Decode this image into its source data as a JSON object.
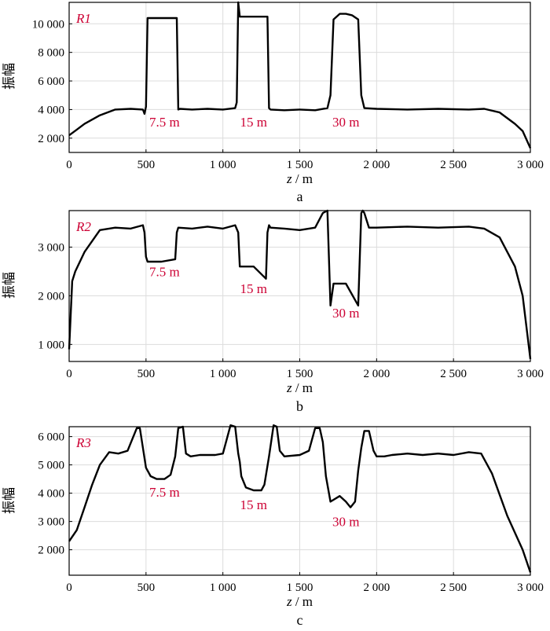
{
  "colors": {
    "line": "#000000",
    "annotation": "#cc0033",
    "grid": "#dcdcdc",
    "frame": "#000000"
  },
  "chart_data": [
    {
      "type": "line",
      "panel_label": "a",
      "series_name": "R1",
      "ylabel": "振幅",
      "xlabel": "z / m",
      "xlim": [
        0,
        3000
      ],
      "ylim": [
        1000,
        11500
      ],
      "xticks": [
        0,
        500,
        1000,
        1500,
        2000,
        2500,
        3000
      ],
      "xtick_labels": [
        "0",
        "500",
        "1 000",
        "1 500",
        "2 000",
        "2 500",
        "3 000"
      ],
      "yticks": [
        2000,
        4000,
        6000,
        8000,
        10000
      ],
      "ytick_labels": [
        "2 000",
        "4 000",
        "6 000",
        "8 000",
        "10 000"
      ],
      "grid": true,
      "annotations": [
        {
          "text": "7.5 m",
          "x": 620,
          "y": 3150
        },
        {
          "text": "15 m",
          "x": 1200,
          "y": 3150
        },
        {
          "text": "30 m",
          "x": 1800,
          "y": 3150
        }
      ],
      "x": [
        0,
        50,
        100,
        200,
        300,
        400,
        480,
        490,
        500,
        510,
        700,
        710,
        720,
        800,
        900,
        1000,
        1080,
        1090,
        1100,
        1110,
        1290,
        1300,
        1310,
        1400,
        1500,
        1600,
        1680,
        1700,
        1720,
        1760,
        1800,
        1840,
        1880,
        1900,
        1920,
        2000,
        2200,
        2400,
        2600,
        2700,
        2800,
        2900,
        2950,
        3000
      ],
      "y": [
        2200,
        2600,
        3000,
        3600,
        4000,
        4050,
        4000,
        3700,
        4200,
        10400,
        10400,
        4000,
        4050,
        4000,
        4050,
        4000,
        4100,
        4500,
        11500,
        10500,
        10500,
        4100,
        4000,
        3950,
        4000,
        3950,
        4100,
        5000,
        10300,
        10700,
        10700,
        10600,
        10300,
        5000,
        4100,
        4050,
        4000,
        4050,
        4000,
        4050,
        3800,
        3000,
        2500,
        1300
      ]
    },
    {
      "type": "line",
      "panel_label": "b",
      "series_name": "R2",
      "ylabel": "振幅",
      "xlabel": "z / m",
      "xlim": [
        0,
        3000
      ],
      "ylim": [
        650,
        3750
      ],
      "xticks": [
        0,
        500,
        1000,
        1500,
        2000,
        2500,
        3000
      ],
      "xtick_labels": [
        "0",
        "500",
        "1 000",
        "1 500",
        "2 000",
        "2 500",
        "3 000"
      ],
      "yticks": [
        1000,
        2000,
        3000
      ],
      "ytick_labels": [
        "1 000",
        "2 000",
        "3 000"
      ],
      "grid": true,
      "annotations": [
        {
          "text": "7.5 m",
          "x": 620,
          "y": 2500
        },
        {
          "text": "15 m",
          "x": 1200,
          "y": 2150
        },
        {
          "text": "30 m",
          "x": 1800,
          "y": 1650
        }
      ],
      "x": [
        0,
        20,
        40,
        100,
        200,
        300,
        400,
        480,
        490,
        500,
        510,
        600,
        690,
        700,
        710,
        800,
        900,
        1000,
        1080,
        1100,
        1110,
        1200,
        1280,
        1290,
        1300,
        1310,
        1400,
        1500,
        1600,
        1650,
        1680,
        1700,
        1720,
        1800,
        1880,
        1900,
        1910,
        1920,
        1950,
        2000,
        2200,
        2400,
        2600,
        2700,
        2800,
        2900,
        2950,
        3000
      ],
      "y": [
        900,
        2300,
        2500,
        2900,
        3350,
        3400,
        3380,
        3450,
        3300,
        2800,
        2700,
        2700,
        2750,
        3300,
        3400,
        3380,
        3420,
        3380,
        3450,
        3300,
        2600,
        2600,
        2350,
        3300,
        3450,
        3400,
        3380,
        3350,
        3400,
        3700,
        3750,
        1800,
        2250,
        2250,
        1800,
        3700,
        3750,
        3700,
        3400,
        3400,
        3420,
        3400,
        3420,
        3380,
        3200,
        2600,
        2000,
        700
      ]
    },
    {
      "type": "line",
      "panel_label": "c",
      "series_name": "R3",
      "ylabel": "振幅",
      "xlabel": "z / m",
      "xlim": [
        0,
        3000
      ],
      "ylim": [
        1100,
        6350
      ],
      "xticks": [
        0,
        500,
        1000,
        1500,
        2000,
        2500,
        3000
      ],
      "xtick_labels": [
        "0",
        "500",
        "1 000",
        "1 500",
        "2 000",
        "2 500",
        "3 000"
      ],
      "yticks": [
        2000,
        3000,
        4000,
        5000,
        6000
      ],
      "ytick_labels": [
        "2 000",
        "3 000",
        "4 000",
        "5 000",
        "6 000"
      ],
      "grid": true,
      "annotations": [
        {
          "text": "7.5 m",
          "x": 620,
          "y": 4050
        },
        {
          "text": "15 m",
          "x": 1200,
          "y": 3600
        },
        {
          "text": "30 m",
          "x": 1800,
          "y": 3000
        }
      ],
      "x": [
        0,
        50,
        100,
        150,
        200,
        260,
        320,
        380,
        440,
        460,
        480,
        500,
        530,
        570,
        620,
        660,
        690,
        710,
        740,
        760,
        790,
        850,
        950,
        1000,
        1050,
        1080,
        1100,
        1110,
        1120,
        1150,
        1200,
        1250,
        1270,
        1300,
        1330,
        1350,
        1370,
        1400,
        1500,
        1560,
        1600,
        1630,
        1650,
        1670,
        1700,
        1760,
        1800,
        1830,
        1860,
        1880,
        1900,
        1920,
        1950,
        1980,
        2000,
        2050,
        2100,
        2200,
        2300,
        2400,
        2500,
        2600,
        2680,
        2750,
        2850,
        2950,
        3000
      ],
      "y": [
        2300,
        2700,
        3500,
        4300,
        5000,
        5450,
        5400,
        5500,
        6300,
        6300,
        5600,
        4900,
        4600,
        4500,
        4500,
        4650,
        5300,
        6300,
        6350,
        5400,
        5300,
        5350,
        5350,
        5400,
        6400,
        6350,
        5400,
        5100,
        4600,
        4200,
        4100,
        4100,
        4300,
        5300,
        6400,
        6350,
        5500,
        5300,
        5350,
        5500,
        6300,
        6300,
        5800,
        4600,
        3700,
        3900,
        3700,
        3500,
        3700,
        4800,
        5600,
        6200,
        6200,
        5500,
        5300,
        5300,
        5350,
        5400,
        5350,
        5400,
        5350,
        5450,
        5400,
        4700,
        3200,
        2000,
        1200
      ]
    }
  ]
}
